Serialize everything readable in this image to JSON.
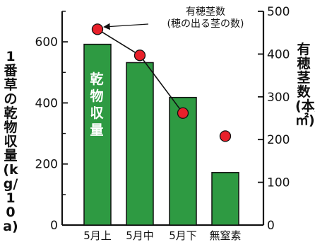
{
  "chart_data": {
    "type": "bar+line",
    "categories": [
      "5月上",
      "5月中",
      "5月下",
      "無窒素"
    ],
    "left_axis": {
      "label": "1番草の乾物収量(kg/10a)",
      "ylim": [
        0,
        700
      ],
      "ticks": [
        "0",
        "200",
        "400",
        "600"
      ],
      "tick_values": [
        0,
        200,
        400,
        600
      ]
    },
    "right_axis": {
      "label": "有穂茎数(本/㎡)",
      "ylim": [
        0,
        500
      ],
      "ticks": [
        "0",
        "100",
        "200",
        "300",
        "400",
        "500"
      ],
      "tick_values": [
        0,
        100,
        200,
        300,
        400,
        500
      ]
    },
    "bar_series": {
      "values": [
        592,
        532,
        418,
        172
      ],
      "color": "#2e9a42",
      "annotation": "乾物収量"
    },
    "point_series": {
      "label_line1": "有穂茎数",
      "label_line2": "(穂の出る茎の数)",
      "values": [
        458,
        397,
        262,
        208
      ],
      "color": "#e8202a",
      "connected": [
        true,
        true,
        true,
        false
      ]
    }
  }
}
